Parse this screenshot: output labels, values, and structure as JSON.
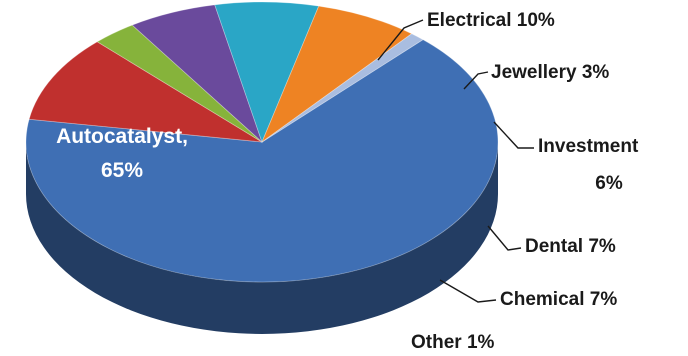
{
  "chart_data": {
    "type": "pie",
    "title": "",
    "style": "3d",
    "legend": "none",
    "slices": [
      {
        "label": "Autocatalyst",
        "value": 65,
        "display": "Autocatalyst,",
        "display2": "65%",
        "color": "#3f6fb4"
      },
      {
        "label": "Electrical",
        "value": 10,
        "display": "Electrical 10%",
        "color": "#c0302e"
      },
      {
        "label": "Jewellery",
        "value": 3,
        "display": "Jewellery 3%",
        "color": "#86b33b"
      },
      {
        "label": "Investment",
        "value": 6,
        "display": "Investment",
        "display2": "6%",
        "color": "#6a4a9c"
      },
      {
        "label": "Dental",
        "value": 7,
        "display": "Dental 7%",
        "color": "#2aa6c6"
      },
      {
        "label": "Chemical",
        "value": 7,
        "display": "Chemical 7%",
        "color": "#ee8323"
      },
      {
        "label": "Other",
        "value": 1,
        "display": "Other 1%",
        "color": "#a9bde0"
      }
    ]
  }
}
